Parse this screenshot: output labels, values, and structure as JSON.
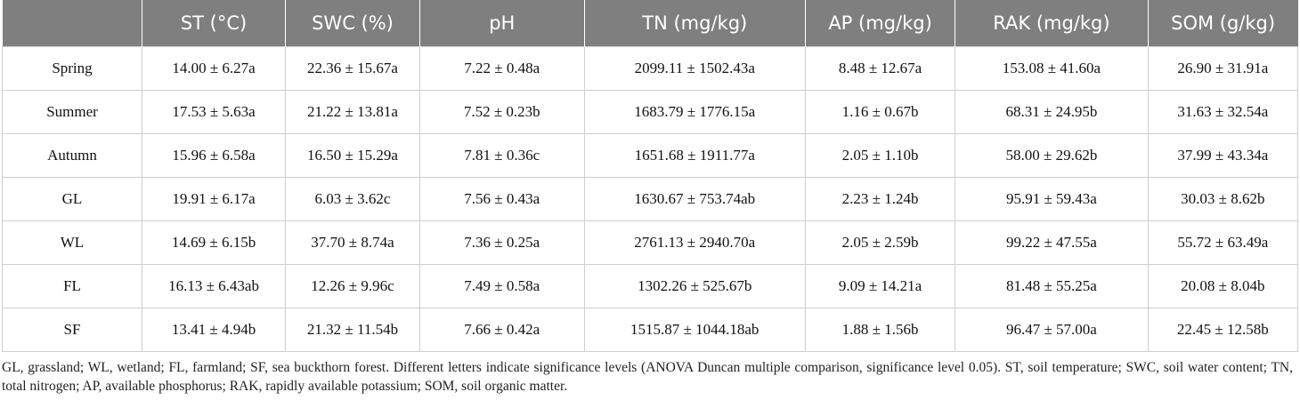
{
  "table": {
    "headers": [
      "",
      "ST (°C)",
      "SWC (%)",
      "pH",
      "TN (mg/kg)",
      "AP (mg/kg)",
      "RAK (mg/kg)",
      "SOM (g/kg)"
    ],
    "rows": [
      [
        "Spring",
        "14.00 ± 6.27a",
        "22.36 ± 15.67a",
        "7.22 ± 0.48a",
        "2099.11 ± 1502.43a",
        "8.48 ± 12.67a",
        "153.08 ± 41.60a",
        "26.90 ± 31.91a"
      ],
      [
        "Summer",
        "17.53 ± 5.63a",
        "21.22 ± 13.81a",
        "7.52 ± 0.23b",
        "1683.79 ± 1776.15a",
        "1.16 ± 0.67b",
        "68.31 ± 24.95b",
        "31.63 ± 32.54a"
      ],
      [
        "Autumn",
        "15.96 ± 6.58a",
        "16.50 ± 15.29a",
        "7.81 ± 0.36c",
        "1651.68 ± 1911.77a",
        "2.05 ± 1.10b",
        "58.00 ± 29.62b",
        "37.99 ± 43.34a"
      ],
      [
        "GL",
        "19.91 ± 6.17a",
        "6.03 ± 3.62c",
        "7.56 ± 0.43a",
        "1630.67 ± 753.74ab",
        "2.23 ± 1.24b",
        "95.91 ± 59.43a",
        "30.03 ± 8.62b"
      ],
      [
        "WL",
        "14.69 ± 6.15b",
        "37.70 ± 8.74a",
        "7.36 ± 0.25a",
        "2761.13 ± 2940.70a",
        "2.05 ± 2.59b",
        "99.22 ± 47.55a",
        "55.72 ± 63.49a"
      ],
      [
        "FL",
        "16.13 ± 6.43ab",
        "12.26 ± 9.96c",
        "7.49 ± 0.58a",
        "1302.26 ± 525.67b",
        "9.09 ± 14.21a",
        "81.48 ± 55.25a",
        "20.08 ± 8.04b"
      ],
      [
        "SF",
        "13.41 ± 4.94b",
        "21.32 ± 11.54b",
        "7.66 ± 0.42a",
        "1515.87 ± 1044.18ab",
        "1.88 ± 1.56b",
        "96.47 ± 57.00a",
        "22.45 ± 12.58b"
      ]
    ]
  },
  "footnote": "GL, grassland; WL, wetland; FL, farmland; SF, sea buckthorn forest. Different letters indicate significance levels (ANOVA Duncan multiple comparison, significance level 0.05). ST, soil temperature; SWC, soil water content; TN, total nitrogen; AP, available phosphorus; RAK, rapidly available potassium; SOM, soil organic matter.",
  "colors": {
    "header_bg": "#7f7f7f",
    "header_text": "#ffffff",
    "grid_line": "#cfcfcf"
  }
}
